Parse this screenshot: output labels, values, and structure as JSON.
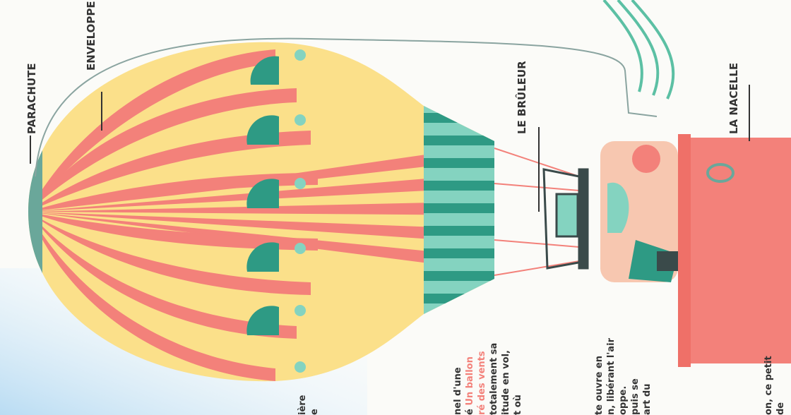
{
  "labels": {
    "parachute": "PARACHUTE",
    "enveloppe": "ENVELOPPE",
    "bruleur": "LE BRÛLEUR",
    "nacelle": "LA NACELLE"
  },
  "text_fragments": {
    "col1_line1": "ière",
    "col1_line2": "e",
    "col2_line1": "nel d'une",
    "col2_line2_a": "é ",
    "col2_line2_b": "Un ballon",
    "col2_line3": "ré des vents",
    "col2_line4": "totalement sa",
    "col2_line5": "itude en vol,",
    "col2_line6": "t où",
    "col3_line1": "te ouvre en",
    "col3_line2": "n, libérant l'air",
    "col3_line3": "oppe.",
    "col3_line4": "puis se",
    "col3_line5": "art du",
    "col4_line1": "on, ce petit",
    "col4_line2": "de"
  },
  "colors": {
    "stripe_salmon": "#f3817a",
    "stripe_yellow": "#fbe08a",
    "teal_dark": "#2e9a84",
    "teal_light": "#84d3c0",
    "basket": "#f3817a",
    "sky": "#cfe6f7"
  }
}
